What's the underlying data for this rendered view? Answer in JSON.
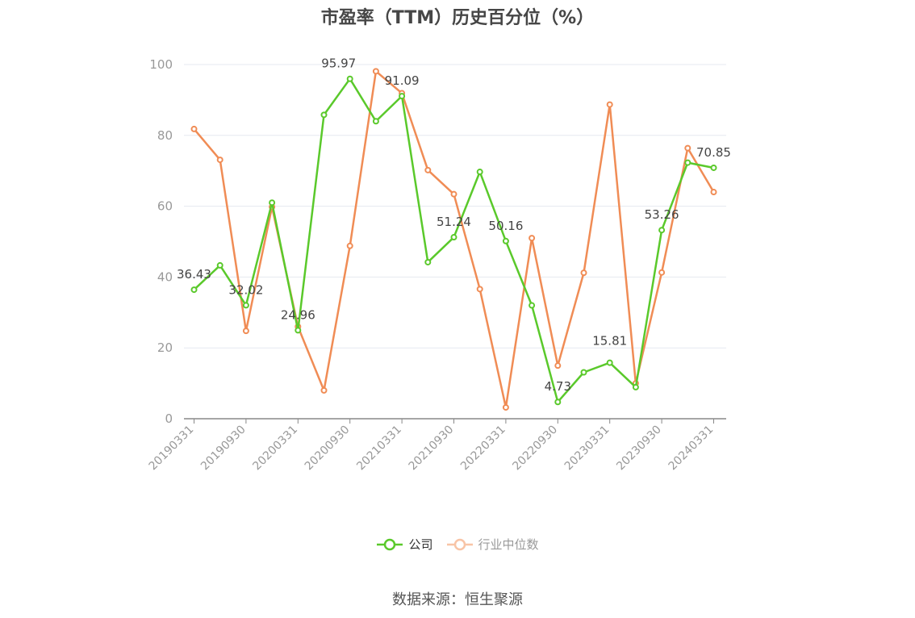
{
  "chart_data": {
    "type": "line",
    "title": "市盈率（TTM）历史百分位（%）",
    "xlabel": "",
    "ylabel": "",
    "ylim": [
      0,
      100
    ],
    "yticks": [
      0,
      20,
      40,
      60,
      80,
      100
    ],
    "grid": true,
    "legend_position": "bottom",
    "categories": [
      "20190331",
      "20190630",
      "20190930",
      "20191231",
      "20200331",
      "20200630",
      "20200930",
      "20201231",
      "20210331",
      "20210630",
      "20210930",
      "20211231",
      "20220331",
      "20220630",
      "20220930",
      "20221231",
      "20230331",
      "20230630",
      "20230930",
      "20231231",
      "20240331"
    ],
    "tick_labels": [
      "20190331",
      "20190930",
      "20200331",
      "20200930",
      "20210331",
      "20210930",
      "20220331",
      "20220930",
      "20230331",
      "20230930",
      "20240331"
    ],
    "series": [
      {
        "name": "公司",
        "color": "#5ac92b",
        "values": [
          36.43,
          43.3,
          32.02,
          61.0,
          24.96,
          85.8,
          95.97,
          84.0,
          91.09,
          44.2,
          51.24,
          69.7,
          50.16,
          32.0,
          4.73,
          13.1,
          15.81,
          8.9,
          53.26,
          72.3,
          70.85
        ],
        "labels": {
          "0": "36.43",
          "2": "32.02",
          "4": "24.96",
          "6": "95.97",
          "8": "91.09",
          "10": "51.24",
          "12": "50.16",
          "14": "4.73",
          "16": "15.81",
          "18": "53.26",
          "20": "70.85"
        }
      },
      {
        "name": "行业中位数",
        "color": "#f08c55",
        "values": [
          81.8,
          73.1,
          24.8,
          59.8,
          26.0,
          8.0,
          48.8,
          98.1,
          91.9,
          70.2,
          63.4,
          36.6,
          3.2,
          51.0,
          15.0,
          41.2,
          88.7,
          10.0,
          41.3,
          76.4,
          64.0
        ]
      }
    ]
  },
  "legend": {
    "company": "公司",
    "industry": "行业中位数"
  },
  "source": "数据来源：恒生聚源"
}
